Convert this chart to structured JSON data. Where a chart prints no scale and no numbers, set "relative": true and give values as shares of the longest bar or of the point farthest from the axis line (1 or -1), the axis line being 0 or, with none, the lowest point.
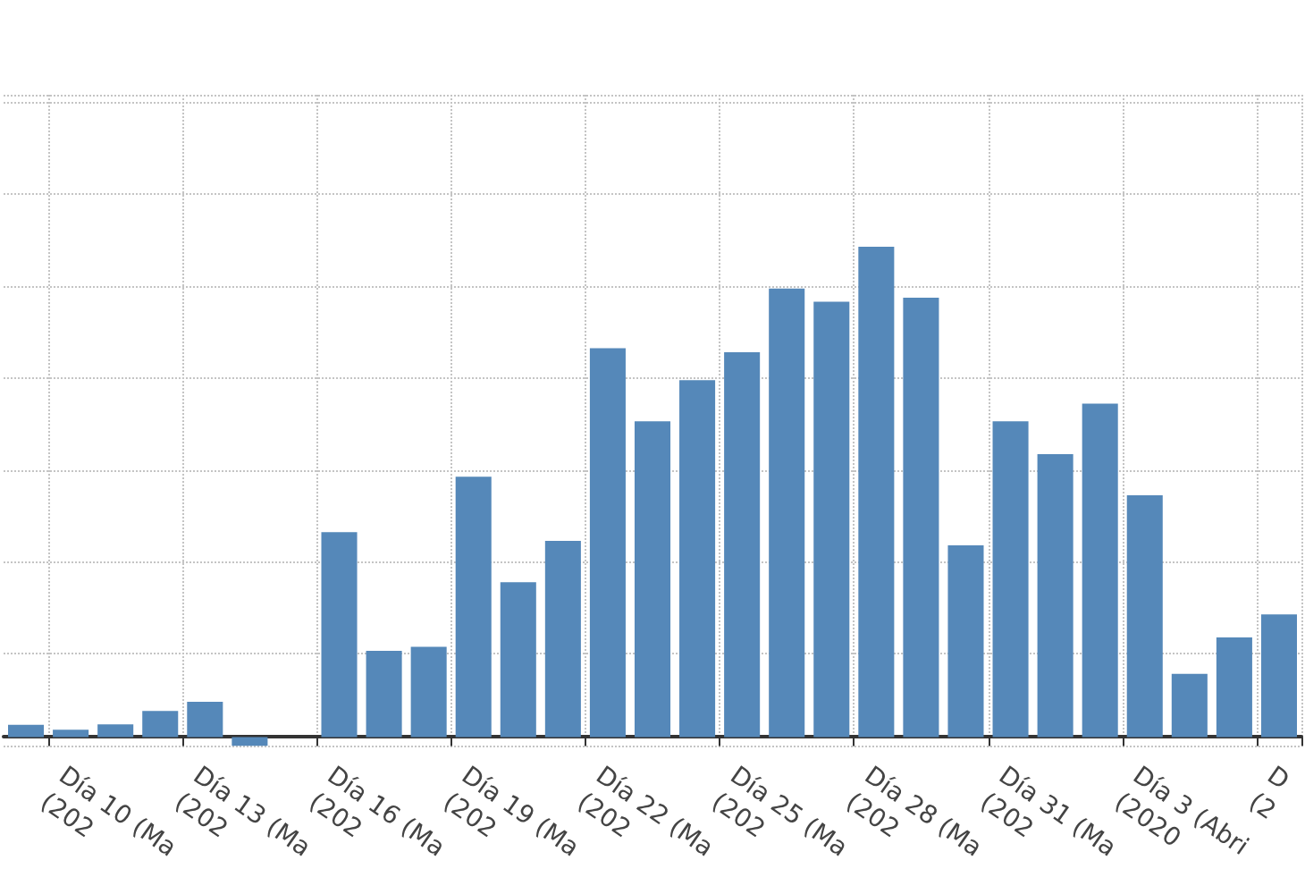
{
  "chart_data": {
    "type": "bar",
    "relative": true,
    "color": "#5588b9",
    "grid": true,
    "categories": [
      null,
      "Día 10 (Ma\n(202",
      null,
      null,
      "Día 13 (Ma\n(202",
      null,
      null,
      "Día 16 (Ma\n(202",
      null,
      null,
      "Día 19 (Ma\n(202",
      null,
      null,
      "Día 22 (Ma\n(202",
      null,
      null,
      "Día 25 (Ma\n(202",
      null,
      null,
      "Día 28 (Ma\n(202",
      null,
      null,
      "Día 31 (Ma\n(202",
      null,
      null,
      "Día 3 (Abri\n(2020",
      null,
      null,
      "D\n(2"
    ],
    "values": [
      0.025,
      0.015,
      0.026,
      0.053,
      0.072,
      -0.018,
      0,
      0.418,
      0.176,
      0.184,
      0.531,
      0.316,
      0.4,
      0.793,
      0.644,
      0.728,
      0.785,
      0.915,
      0.888,
      1,
      0.896,
      0.391,
      0.644,
      0.577,
      0.68,
      0.493,
      0.129,
      0.203,
      0.25
    ]
  }
}
